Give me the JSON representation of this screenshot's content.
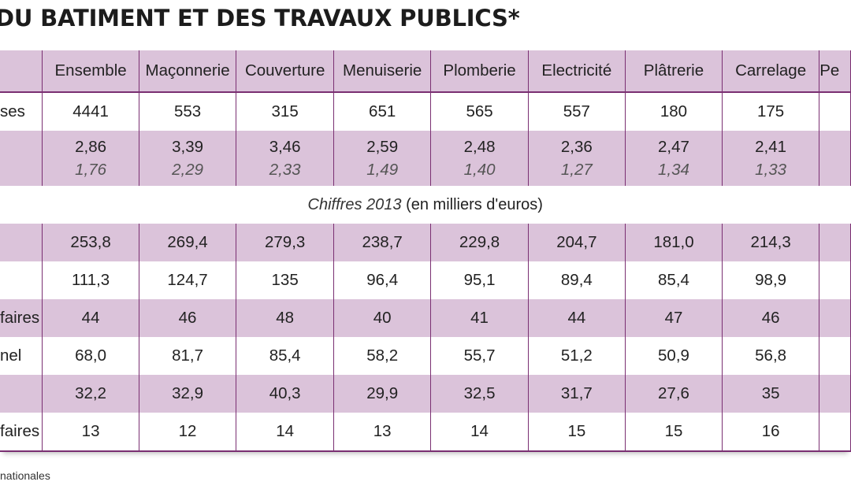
{
  "title": "DU BATIMENT ET DES TRAVAUX PUBLICS*",
  "columns": [
    "Ensemble",
    "Maçonnerie",
    "Couverture",
    "Menuiserie",
    "Plomberie",
    "Electricité",
    "Plâtrerie",
    "Carrelage",
    "Pe"
  ],
  "rows": [
    {
      "label": "ses",
      "values": [
        "4441",
        "553",
        "315",
        "651",
        "565",
        "557",
        "180",
        "175",
        ""
      ]
    },
    {
      "label": "",
      "values": [
        "2,86",
        "3,39",
        "3,46",
        "2,59",
        "2,48",
        "2,36",
        "2,47",
        "2,41",
        ""
      ],
      "values_italic": [
        "1,76",
        "2,29",
        "2,33",
        "1,49",
        "1,40",
        "1,27",
        "1,34",
        "1,33",
        ""
      ]
    }
  ],
  "section": {
    "italic": "Chiffres 2013",
    "rest": " (en milliers d'euros)"
  },
  "rows2013": [
    {
      "label": "",
      "values": [
        "253,8",
        "269,4",
        "279,3",
        "238,7",
        "229,8",
        "204,7",
        "181,0",
        "214,3",
        ""
      ]
    },
    {
      "label": "",
      "values": [
        "111,3",
        "124,7",
        "135",
        "96,4",
        "95,1",
        "89,4",
        "85,4",
        "98,9",
        ""
      ]
    },
    {
      "label": "faires",
      "values": [
        "44",
        "46",
        "48",
        "40",
        "41",
        "44",
        "47",
        "46",
        ""
      ]
    },
    {
      "label": "nel",
      "values": [
        "68,0",
        "81,7",
        "85,4",
        "58,2",
        "55,7",
        "51,2",
        "50,9",
        "56,8",
        ""
      ]
    },
    {
      "label": "",
      "values": [
        "32,2",
        "32,9",
        "40,3",
        "29,9",
        "32,5",
        "31,7",
        "27,6",
        "35",
        ""
      ]
    },
    {
      "label": "faires",
      "values": [
        "13",
        "12",
        "14",
        "13",
        "14",
        "15",
        "15",
        "16",
        ""
      ]
    }
  ],
  "footnote": "nationales",
  "colors": {
    "row_pink": "#dbc3da",
    "rule": "#7a2f72"
  }
}
